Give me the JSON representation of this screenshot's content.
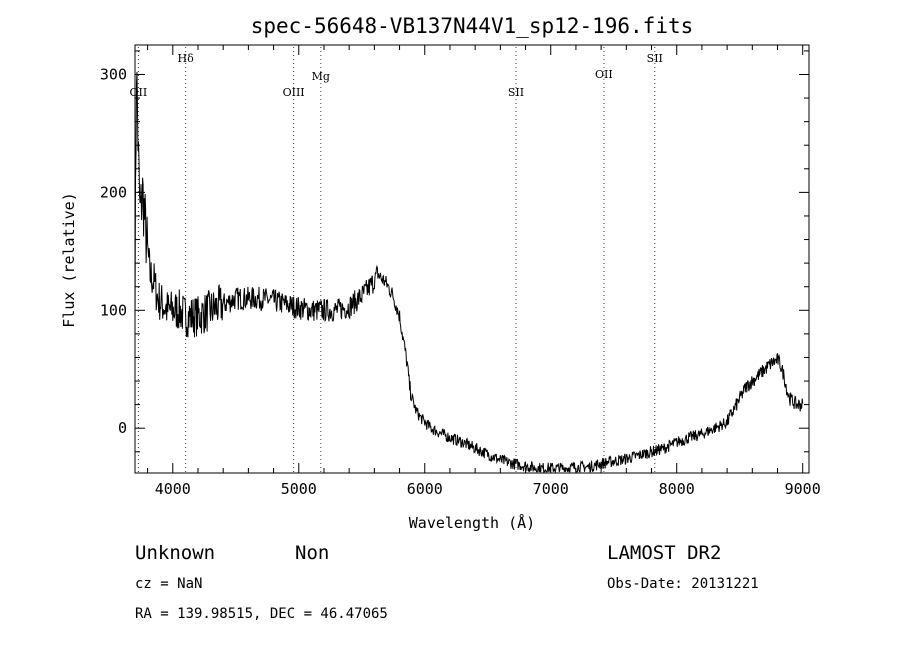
{
  "chart_data": {
    "type": "line",
    "title": "spec-56648-VB137N44V1_sp12-196.fits",
    "xlabel": "Wavelength (Å)",
    "ylabel": "Flux (relative)",
    "xlim": [
      3700,
      9050
    ],
    "ylim": [
      -38,
      325
    ],
    "xticks": [
      4000,
      5000,
      6000,
      7000,
      8000,
      9000
    ],
    "yticks": [
      0,
      100,
      200,
      300
    ],
    "grid": false,
    "series": [
      {
        "x": [
          3700,
          3712,
          3725,
          3740,
          3760,
          3790,
          3820,
          3850,
          3880,
          3920,
          3960,
          4000,
          4050,
          4100,
          4150,
          4200,
          4300,
          4400,
          4500,
          4600,
          4700,
          4800,
          4900,
          5000,
          5100,
          5200,
          5300,
          5400,
          5500,
          5550,
          5600,
          5620,
          5650,
          5700,
          5750,
          5800,
          5830,
          5860,
          5880,
          5900,
          5930,
          5960,
          6000,
          6050,
          6100,
          6200,
          6300,
          6400,
          6500,
          6600,
          6700,
          6800,
          6900,
          7000,
          7100,
          7200,
          7300,
          7400,
          7500,
          7600,
          7700,
          7800,
          7900,
          8000,
          8100,
          8200,
          8300,
          8400,
          8500,
          8550,
          8600,
          8650,
          8700,
          8750,
          8800,
          8820,
          8850,
          8880,
          8900,
          8950,
          9000
        ],
        "y": [
          120,
          310,
          240,
          180,
          200,
          160,
          130,
          125,
          110,
          105,
          100,
          100,
          100,
          95,
          95,
          95,
          100,
          105,
          110,
          110,
          110,
          108,
          105,
          102,
          100,
          100,
          100,
          103,
          112,
          118,
          125,
          132,
          128,
          122,
          112,
          95,
          75,
          55,
          35,
          25,
          15,
          10,
          5,
          0,
          -3,
          -8,
          -12,
          -17,
          -22,
          -27,
          -30,
          -32,
          -34,
          -34,
          -34,
          -33,
          -33,
          -30,
          -28,
          -26,
          -23,
          -20,
          -17,
          -12,
          -8,
          -5,
          0,
          5,
          25,
          35,
          40,
          45,
          50,
          55,
          58,
          55,
          45,
          30,
          25,
          20,
          20
        ]
      }
    ],
    "emission_lines": [
      {
        "label": "OII",
        "x": 3727
      },
      {
        "label": "Hδ",
        "x": 4102
      },
      {
        "label": "OIII",
        "x": 4959
      },
      {
        "label": "Mg",
        "x": 5175
      },
      {
        "label": "SII",
        "x": 6724
      },
      {
        "label": "OII",
        "x": 7422
      },
      {
        "label": "SII",
        "x": 7826
      }
    ]
  },
  "footer": {
    "object_class": "Unknown",
    "subclass": "Non",
    "survey": "LAMOST DR2",
    "cz": "cz = NaN",
    "obs_date": "Obs-Date: 20131221",
    "coords": "RA = 139.98515, DEC =  46.47065"
  }
}
